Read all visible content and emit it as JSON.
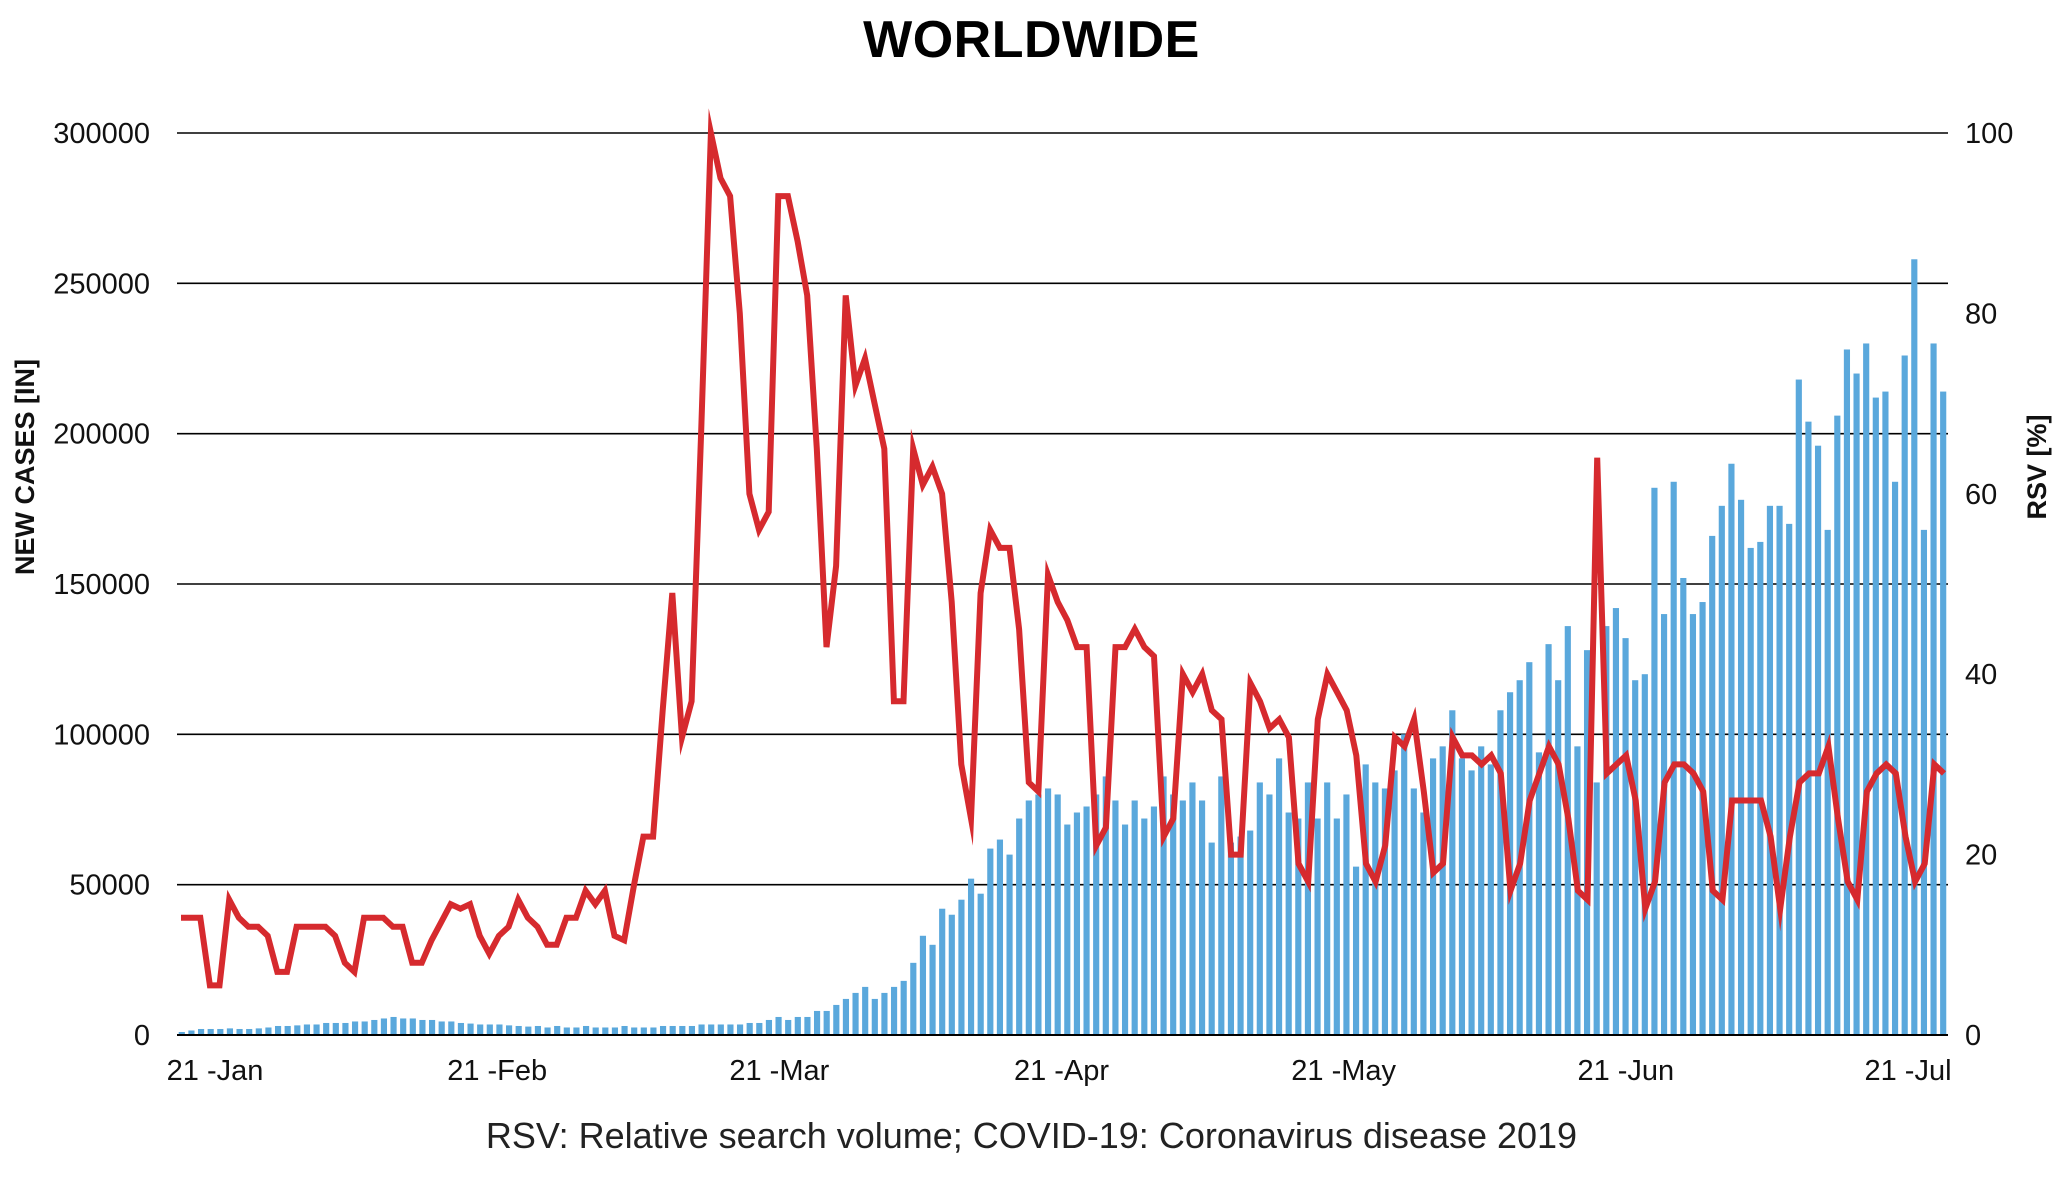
{
  "chart_data": {
    "type": "bar+line",
    "title": "WORLDWIDE",
    "footnote": "RSV: Relative search volume; COVID-19: Coronavirus disease 2019",
    "ylabel_left": "NEW CASES [IN]",
    "ylabel_right": "RSV [%]",
    "ylim_left": [
      0,
      300000
    ],
    "ylim_right": [
      0,
      100
    ],
    "yticks_left": [
      "0",
      "50000",
      "100000",
      "150000",
      "200000",
      "250000",
      "300000"
    ],
    "yticks_right": [
      "0",
      "20",
      "40",
      "60",
      "80",
      "100"
    ],
    "xticks": [
      "21 -Jan",
      "21 -Feb",
      "21 -Mar",
      "21 -Apr",
      "21 -May",
      "21 -Jun",
      "21 -Jul"
    ],
    "grid": "horizontal",
    "series": [
      {
        "name": "New cases",
        "kind": "bar",
        "axis": "left",
        "color": "#5aa8dc",
        "values": [
          1000,
          1500,
          2000,
          2000,
          2000,
          2200,
          2000,
          2000,
          2200,
          2500,
          3000,
          3000,
          3200,
          3500,
          3500,
          4000,
          4000,
          4000,
          4500,
          4500,
          5000,
          5500,
          6000,
          5500,
          5500,
          5000,
          5000,
          4500,
          4500,
          4000,
          3800,
          3500,
          3500,
          3500,
          3200,
          3000,
          2800,
          3000,
          2500,
          3000,
          2500,
          2500,
          3000,
          2500,
          2500,
          2500,
          3000,
          2500,
          2500,
          2500,
          3000,
          3000,
          3000,
          3000,
          3500,
          3500,
          3500,
          3500,
          3500,
          4000,
          4000,
          5000,
          6000,
          5000,
          6000,
          6000,
          8000,
          8000,
          10000,
          12000,
          14000,
          16000,
          12000,
          14000,
          16000,
          18000,
          24000,
          33000,
          30000,
          42000,
          40000,
          45000,
          52000,
          47000,
          62000,
          65000,
          60000,
          72000,
          78000,
          80000,
          82000,
          80000,
          70000,
          74000,
          76000,
          80000,
          86000,
          78000,
          70000,
          78000,
          72000,
          76000,
          86000,
          80000,
          78000,
          84000,
          78000,
          64000,
          86000,
          64000,
          66000,
          68000,
          84000,
          80000,
          92000,
          74000,
          72000,
          84000,
          72000,
          84000,
          72000,
          80000,
          56000,
          90000,
          84000,
          82000,
          88000,
          100000,
          82000,
          74000,
          92000,
          96000,
          108000,
          92000,
          88000,
          96000,
          90000,
          108000,
          114000,
          118000,
          124000,
          94000,
          130000,
          118000,
          136000,
          96000,
          128000,
          84000,
          136000,
          142000,
          132000,
          118000,
          120000,
          182000,
          140000,
          184000,
          152000,
          140000,
          144000,
          166000,
          176000,
          190000,
          178000,
          162000,
          164000,
          176000,
          176000,
          170000,
          218000,
          204000,
          196000,
          168000,
          206000,
          228000,
          220000,
          230000,
          212000,
          214000,
          184000,
          226000,
          258000,
          168000,
          230000,
          214000
        ]
      },
      {
        "name": "RSV",
        "kind": "line",
        "axis": "right",
        "color": "#d62a2e",
        "values": [
          13,
          13,
          13,
          5.5,
          5.5,
          15,
          13,
          12,
          12,
          11,
          7,
          7,
          12,
          12,
          12,
          12,
          11,
          8,
          7,
          13,
          13,
          13,
          12,
          12,
          8,
          8,
          10.5,
          12.5,
          14.5,
          14,
          14.5,
          11,
          9,
          11,
          12,
          15,
          13,
          12,
          10,
          10,
          13,
          13,
          16,
          14.5,
          16,
          11,
          10.5,
          16.5,
          22,
          22,
          36,
          49,
          33,
          37,
          67,
          100,
          95,
          93,
          80,
          60,
          56,
          58,
          93,
          93,
          88,
          82,
          65,
          43,
          52,
          82,
          72,
          75,
          70,
          65,
          37,
          37,
          65,
          61,
          63,
          60,
          48,
          30,
          24,
          49,
          56,
          54,
          54,
          45,
          28,
          27,
          51,
          48,
          46,
          43,
          43,
          21,
          23,
          43,
          43,
          45,
          43,
          42,
          22,
          24,
          40,
          38,
          40,
          36,
          35,
          20,
          20,
          39,
          37,
          34,
          35,
          33,
          19,
          17,
          35,
          40,
          38,
          36,
          31,
          19,
          17,
          21,
          33,
          32,
          35,
          27,
          18,
          19,
          33,
          31,
          31,
          30,
          31,
          29,
          16,
          19,
          26,
          29,
          32,
          30,
          24,
          16,
          15,
          64,
          29,
          30,
          31,
          26,
          14,
          17,
          28,
          30,
          30,
          29,
          27,
          16,
          15,
          26,
          26,
          26,
          26,
          22,
          14,
          22,
          28,
          29,
          29,
          32,
          24,
          17,
          15,
          27,
          29,
          30,
          29,
          22,
          17,
          19,
          30,
          29
        ]
      }
    ]
  }
}
